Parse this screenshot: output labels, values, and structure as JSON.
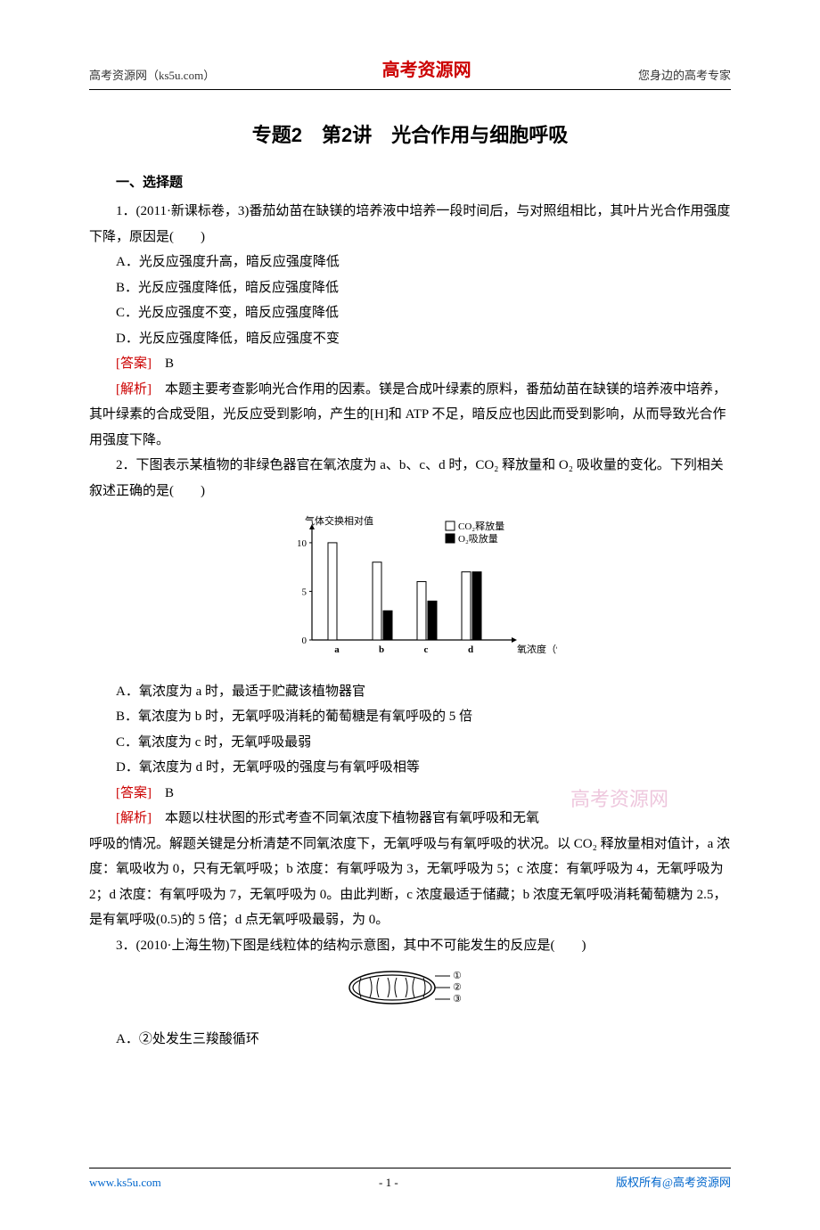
{
  "header": {
    "left": "高考资源网（ks5u.com）",
    "center": "高考资源网",
    "right": "您身边的高考专家"
  },
  "title": "专题2　第2讲　光合作用与细胞呼吸",
  "sectionHeading": "一、选择题",
  "q1": {
    "stem": "1．(2011·新课标卷，3)番茄幼苗在缺镁的培养液中培养一段时间后，与对照组相比，其叶片光合作用强度下降，原因是(　　)",
    "A": "A．光反应强度升高，暗反应强度降低",
    "B": "B．光反应强度降低，暗反应强度降低",
    "C": "C．光反应强度不变，暗反应强度降低",
    "D": "D．光反应强度降低，暗反应强度不变",
    "ansLabel": "[答案]",
    "ans": "B",
    "anaLabel": "[解析]",
    "ana": "　本题主要考查影响光合作用的因素。镁是合成叶绿素的原料，番茄幼苗在缺镁的培养液中培养，其叶绿素的合成受阻，光反应受到影响，产生的[H]和 ATP 不足，暗反应也因此而受到影响，从而导致光合作用强度下降。"
  },
  "q2": {
    "stem": "2．下图表示某植物的非绿色器官在氧浓度为 a、b、c、d 时，CO₂ 释放量和 O₂ 吸收量的变化。下列相关叙述正确的是(　　)",
    "A": "A．氧浓度为 a 时，最适于贮藏该植物器官",
    "B": "B．氧浓度为 b 时，无氧呼吸消耗的葡萄糖是有氧呼吸的 5 倍",
    "C": "C．氧浓度为 c 时，无氧呼吸最弱",
    "D": "D．氧浓度为 d 时，无氧呼吸的强度与有氧呼吸相等",
    "ansLabel": "[答案]",
    "ans": "B",
    "anaLabel": "[解析]",
    "ana": "　本题以柱状图的形式考查不同氧浓度下植物器官有氧呼吸和无氧呼吸的情况。解题关键是分析清楚不同氧浓度下，无氧呼吸与有氧呼吸的状况。以 CO₂ 释放量相对值计，a 浓度：氧吸收为 0，只有无氧呼吸；b 浓度：有氧呼吸为 3，无氧呼吸为 5；c 浓度：有氧呼吸为 4，无氧呼吸为 2；d 浓度：有氧呼吸为 7，无氧呼吸为 0。由此判断，c 浓度最适于储藏；b 浓度无氧呼吸消耗葡萄糖为 2.5，是有氧呼吸(0.5)的 5 倍；d 点无氧呼吸最弱，为 0。"
  },
  "q3": {
    "stem": "3．(2010·上海生物)下图是线粒体的结构示意图，其中不可能发生的反应是(　　)",
    "A": "A．②处发生三羧酸循环"
  },
  "watermark": "高考资源网",
  "chart": {
    "type": "bar",
    "yLabel": "气体交换相对值",
    "xLabel": "氧浓度（%）",
    "legend": {
      "co2": "CO₂释放量",
      "o2": "O₂吸放量"
    },
    "categories": [
      "a",
      "b",
      "c",
      "d"
    ],
    "co2": [
      10,
      8,
      6,
      7
    ],
    "o2": [
      0,
      3,
      4,
      7
    ],
    "yticks": [
      0,
      5,
      10
    ],
    "ylim": [
      0,
      11
    ],
    "colors": {
      "co2": "#ffffff",
      "o2": "#000000",
      "stroke": "#000000",
      "bg": "#ffffff"
    },
    "barWidth": 10,
    "groupGap": 28,
    "innerGap": 2,
    "fontSize": 11
  },
  "mito": {
    "labels": [
      "①",
      "②",
      "③"
    ],
    "stroke": "#000000"
  },
  "footer": {
    "left": "www.ks5u.com",
    "center": "- 1 -",
    "right": "版权所有@高考资源网"
  }
}
